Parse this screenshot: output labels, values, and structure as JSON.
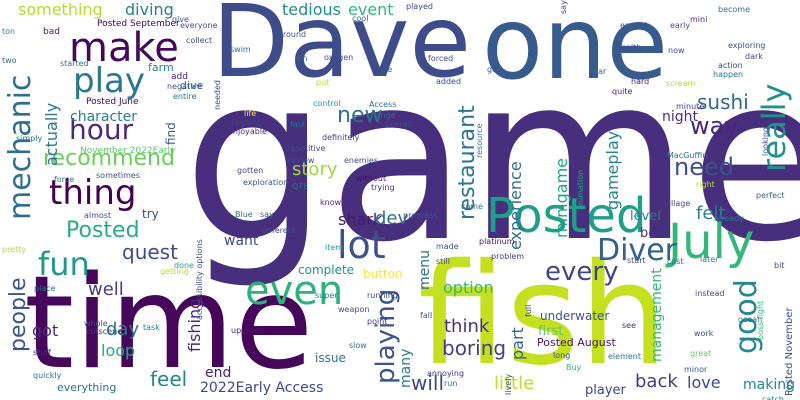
{
  "word_cloud": {
    "background": "#ffffff",
    "words": [
      {
        "text": "game",
        "color": "#472f7d"
      },
      {
        "text": "time",
        "color": "#46075a"
      },
      {
        "text": "fish",
        "color": "#c5e021"
      },
      {
        "text": "Dave",
        "color": "#3e4c8a"
      },
      {
        "text": "one",
        "color": "#375b8d"
      },
      {
        "text": "Posted",
        "color": "#1f9e89"
      },
      {
        "text": "July",
        "color": "#35b779"
      },
      {
        "text": "make",
        "color": "#46085c"
      },
      {
        "text": "play",
        "color": "#2a788e"
      },
      {
        "text": "thing",
        "color": "#440154"
      },
      {
        "text": "fun",
        "color": "#1f9a8a"
      },
      {
        "text": "lot",
        "color": "#3b528b"
      },
      {
        "text": "even",
        "color": "#2db27d"
      },
      {
        "text": "hour",
        "color": "#4c2a7a"
      },
      {
        "text": "recommend",
        "color": "#6ccd5a"
      },
      {
        "text": "mechanic",
        "color": "#2e6e8e"
      },
      {
        "text": "people",
        "color": "#3a548c"
      },
      {
        "text": "really",
        "color": "#21918c"
      },
      {
        "text": "good",
        "color": "#24868e"
      },
      {
        "text": "Diver",
        "color": "#34618d"
      },
      {
        "text": "every",
        "color": "#3f4788"
      },
      {
        "text": "playing",
        "color": "#3a548c"
      },
      {
        "text": "restaurant",
        "color": "#2a768e"
      },
      {
        "text": "sushi",
        "color": "#31688e"
      },
      {
        "text": "way",
        "color": "#482677"
      },
      {
        "text": "need",
        "color": "#3b528b"
      },
      {
        "text": "story",
        "color": "#a0da39"
      },
      {
        "text": "new",
        "color": "#2c728e"
      },
      {
        "text": "shark",
        "color": "#481a6c"
      },
      {
        "text": "dev",
        "color": "#2e6e8e"
      },
      {
        "text": "felt",
        "color": "#27808e"
      },
      {
        "text": "quest",
        "color": "#3d4d8a"
      },
      {
        "text": "Posted",
        "color": "#26ad81"
      },
      {
        "text": "think",
        "color": "#46337e"
      },
      {
        "text": "boring",
        "color": "#424086"
      },
      {
        "text": "day",
        "color": "#2a788e"
      },
      {
        "text": "well",
        "color": "#433e85"
      },
      {
        "text": "feel",
        "color": "#23888e"
      },
      {
        "text": "will",
        "color": "#404688"
      },
      {
        "text": "little",
        "color": "#bddf26"
      },
      {
        "text": "back",
        "color": "#443983"
      },
      {
        "text": "love",
        "color": "#3e4a89"
      },
      {
        "text": "making",
        "color": "#25848e"
      },
      {
        "text": "loop",
        "color": "#25ab82"
      },
      {
        "text": "got",
        "color": "#472e7c"
      },
      {
        "text": "many",
        "color": "#2a788e"
      },
      {
        "text": "menu",
        "color": "#2d708e"
      },
      {
        "text": "option",
        "color": "#35b779"
      },
      {
        "text": "gameplay",
        "color": "#23888e"
      },
      {
        "text": "minigame",
        "color": "#20a486"
      },
      {
        "text": "experience",
        "color": "#306a8e"
      },
      {
        "text": "part",
        "color": "#32648e"
      },
      {
        "text": "management",
        "color": "#35b779"
      },
      {
        "text": "fishing",
        "color": "#482677"
      },
      {
        "text": "actually",
        "color": "#2a788e"
      },
      {
        "text": "something",
        "color": "#b2dd2d"
      },
      {
        "text": "diving",
        "color": "#26828e"
      },
      {
        "text": "tedious",
        "color": "#228d8d"
      },
      {
        "text": "event",
        "color": "#31b57b"
      },
      {
        "text": "character",
        "color": "#287c8e"
      },
      {
        "text": "night",
        "color": "#46307e"
      },
      {
        "text": "want",
        "color": "#3e4989"
      },
      {
        "text": "end",
        "color": "#482173"
      },
      {
        "text": "2022Early Access",
        "color": "#3e4989"
      },
      {
        "text": "everything",
        "color": "#2d708e"
      },
      {
        "text": "Posted August",
        "color": "#481467"
      },
      {
        "text": "player",
        "color": "#3f4889"
      },
      {
        "text": "first",
        "color": "#5ec962"
      },
      {
        "text": "level",
        "color": "#297a8e"
      },
      {
        "text": "boss",
        "color": "#453781"
      },
      {
        "text": "underwater",
        "color": "#3b528b"
      },
      {
        "text": "button",
        "color": "#fde725"
      },
      {
        "text": "complete",
        "color": "#218f8d"
      },
      {
        "text": "issue",
        "color": "#2c738e"
      },
      {
        "text": "try",
        "color": "#3e4a89"
      },
      {
        "text": "find",
        "color": "#3a548c"
      },
      {
        "text": "Posted June",
        "color": "#440154"
      },
      {
        "text": "November 2022Early",
        "color": "#5cc863"
      },
      {
        "text": "farm",
        "color": "#24878e"
      },
      {
        "text": "dive",
        "color": "#2c728e"
      },
      {
        "text": "add",
        "color": "#481c6e"
      },
      {
        "text": "bad",
        "color": "#481769"
      },
      {
        "text": "Posted November",
        "color": "#3b528b"
      },
      {
        "text": "Posted September",
        "color": "#440154"
      },
      {
        "text": "life",
        "color": "#fde725"
      },
      {
        "text": "farming",
        "color": "#424186"
      },
      {
        "text": "enjoyable",
        "color": "#482878"
      },
      {
        "text": "Access",
        "color": "#2e6e8e"
      },
      {
        "text": "fast",
        "color": "#2c728e"
      },
      {
        "text": "control",
        "color": "#1f9e89"
      },
      {
        "text": "definitely",
        "color": "#453781"
      },
      {
        "text": "repetitive",
        "color": "#3e4989"
      },
      {
        "text": "enemies",
        "color": "#3d4e8a"
      },
      {
        "text": "review",
        "color": "#3e4c8a"
      },
      {
        "text": "without",
        "color": "#471164"
      },
      {
        "text": "trying",
        "color": "#46307e"
      },
      {
        "text": "know",
        "color": "#482878"
      },
      {
        "text": "progress",
        "color": "#3b528b"
      },
      {
        "text": "village",
        "color": "#3e4a89"
      },
      {
        "text": "cost",
        "color": "#31678e"
      },
      {
        "text": "later",
        "color": "#2d708e"
      },
      {
        "text": "weapon",
        "color": "#3c4f8a"
      },
      {
        "text": "upgrade",
        "color": "#48186a"
      },
      {
        "text": "cutscene",
        "color": "#46337e"
      },
      {
        "text": "resource",
        "color": "#297a8e"
      },
      {
        "text": "quite",
        "color": "#482475"
      },
      {
        "text": "minute",
        "color": "#433d84"
      },
      {
        "text": "hard",
        "color": "#482576"
      },
      {
        "text": "action",
        "color": "#3f4788"
      },
      {
        "text": "health",
        "color": "#404588"
      },
      {
        "text": "enough",
        "color": "#3b528b"
      },
      {
        "text": "early",
        "color": "#3e4989"
      },
      {
        "text": "mini",
        "color": "#482677"
      },
      {
        "text": "become",
        "color": "#2d708e"
      },
      {
        "text": "exploring",
        "color": "#3d4e8a"
      },
      {
        "text": "dark",
        "color": "#404688"
      },
      {
        "text": "happen",
        "color": "#2c728e"
      },
      {
        "text": "MacGuffin",
        "color": "#2e6f8e"
      },
      {
        "text": "perfect",
        "color": "#31688e"
      },
      {
        "text": "looking",
        "color": "#3b528b"
      },
      {
        "text": "right",
        "color": "#b5de2b"
      },
      {
        "text": "already",
        "color": "#2c728e"
      },
      {
        "text": "animation",
        "color": "#21a685"
      },
      {
        "text": "come",
        "color": "#2d708e"
      },
      {
        "text": "platinum",
        "color": "#481668"
      },
      {
        "text": "still",
        "color": "#404688"
      },
      {
        "text": "problem",
        "color": "#453781"
      },
      {
        "text": "made",
        "color": "#3b528b"
      },
      {
        "text": "full",
        "color": "#424086"
      },
      {
        "text": "start",
        "color": "#3f4788"
      },
      {
        "text": "instead",
        "color": "#3e4c8a"
      },
      {
        "text": "work",
        "color": "#3d4d8a"
      },
      {
        "text": "great",
        "color": "#5ec962"
      },
      {
        "text": "see",
        "color": "#46307e"
      },
      {
        "text": "long",
        "color": "#3e4c8a"
      },
      {
        "text": "element",
        "color": "#2b758e"
      },
      {
        "text": "Buy",
        "color": "#31b57b"
      },
      {
        "text": "minor",
        "color": "#3b528b"
      },
      {
        "text": "catch",
        "color": "#26828e"
      },
      {
        "text": "boss fight",
        "color": "#35b779"
      },
      {
        "text": "bit",
        "color": "#3e4c8a"
      },
      {
        "text": "ocean",
        "color": "#2a788e"
      },
      {
        "text": "annoying",
        "color": "#46307e"
      },
      {
        "text": "run",
        "color": "#2a788e"
      },
      {
        "text": "fall",
        "color": "#3b528b"
      },
      {
        "text": "point",
        "color": "#433d84"
      },
      {
        "text": "slow",
        "color": "#2d708e"
      },
      {
        "text": "running",
        "color": "#3e4989"
      },
      {
        "text": "super",
        "color": "#2a788e"
      },
      {
        "text": "item",
        "color": "#1fa188"
      },
      {
        "text": "different",
        "color": "#3e4c8a"
      },
      {
        "text": "say",
        "color": "#31688e"
      },
      {
        "text": "Blue",
        "color": "#2e6f8e"
      },
      {
        "text": "QTE",
        "color": "#2d708e"
      },
      {
        "text": "exploration",
        "color": "#3b528b"
      },
      {
        "text": "gotten",
        "color": "#3e4989"
      },
      {
        "text": "accessibility options",
        "color": "#3d4e8a"
      },
      {
        "text": "done",
        "color": "#20a486"
      },
      {
        "text": "task",
        "color": "#25848e"
      },
      {
        "text": "getting",
        "color": "#bddf26"
      },
      {
        "text": "place",
        "color": "#2c728e"
      },
      {
        "text": "pretty",
        "color": "#b5de2b"
      },
      {
        "text": "stuff",
        "color": "#472c7a"
      },
      {
        "text": "whole",
        "color": "#3e4c8a"
      },
      {
        "text": "quickly",
        "color": "#2e6e8e"
      },
      {
        "text": "sometimes",
        "color": "#3b528b"
      },
      {
        "text": "force",
        "color": "#2c728e"
      },
      {
        "text": "simply",
        "color": "#2e6f8e"
      },
      {
        "text": "almost",
        "color": "#3e4c8a"
      },
      {
        "text": "needed",
        "color": "#3e4989"
      },
      {
        "text": "entire",
        "color": "#2e6f8e"
      },
      {
        "text": "negative",
        "color": "#3b528b"
      },
      {
        "text": "collect",
        "color": "#3e4989"
      },
      {
        "text": "give",
        "color": "#3b528b"
      },
      {
        "text": "everyone",
        "color": "#3e4c8a"
      },
      {
        "text": "started",
        "color": "#2c728e"
      },
      {
        "text": "ton",
        "color": "#26828e"
      },
      {
        "text": "two",
        "color": "#31688e"
      },
      {
        "text": "swim",
        "color": "#2e6f8e"
      },
      {
        "text": "around",
        "color": "#3b528b"
      },
      {
        "text": "sin",
        "color": "#2c728e"
      },
      {
        "text": "oxygen",
        "color": "#3e4c8a"
      },
      {
        "text": "cool",
        "color": "#31688e"
      },
      {
        "text": "played",
        "color": "#3e4989"
      },
      {
        "text": "use",
        "color": "#3b528b"
      },
      {
        "text": "put",
        "color": "#b2dd2d"
      },
      {
        "text": "less",
        "color": "#3e4c8a"
      },
      {
        "text": "forced",
        "color": "#3e4c8a"
      },
      {
        "text": "added",
        "color": "#3e4989"
      },
      {
        "text": "go",
        "color": "#3b528b"
      },
      {
        "text": "bar",
        "color": "#2c728e"
      },
      {
        "text": "say",
        "color": "#3e4c8a"
      },
      {
        "text": "now",
        "color": "#3e4989"
      },
      {
        "text": "scream",
        "color": "#b5de2b"
      },
      {
        "text": "overall",
        "color": "#3e4c8a"
      },
      {
        "text": "change",
        "color": "#2e6f8e"
      },
      {
        "text": "lively",
        "color": "#3e4989"
      }
    ]
  }
}
